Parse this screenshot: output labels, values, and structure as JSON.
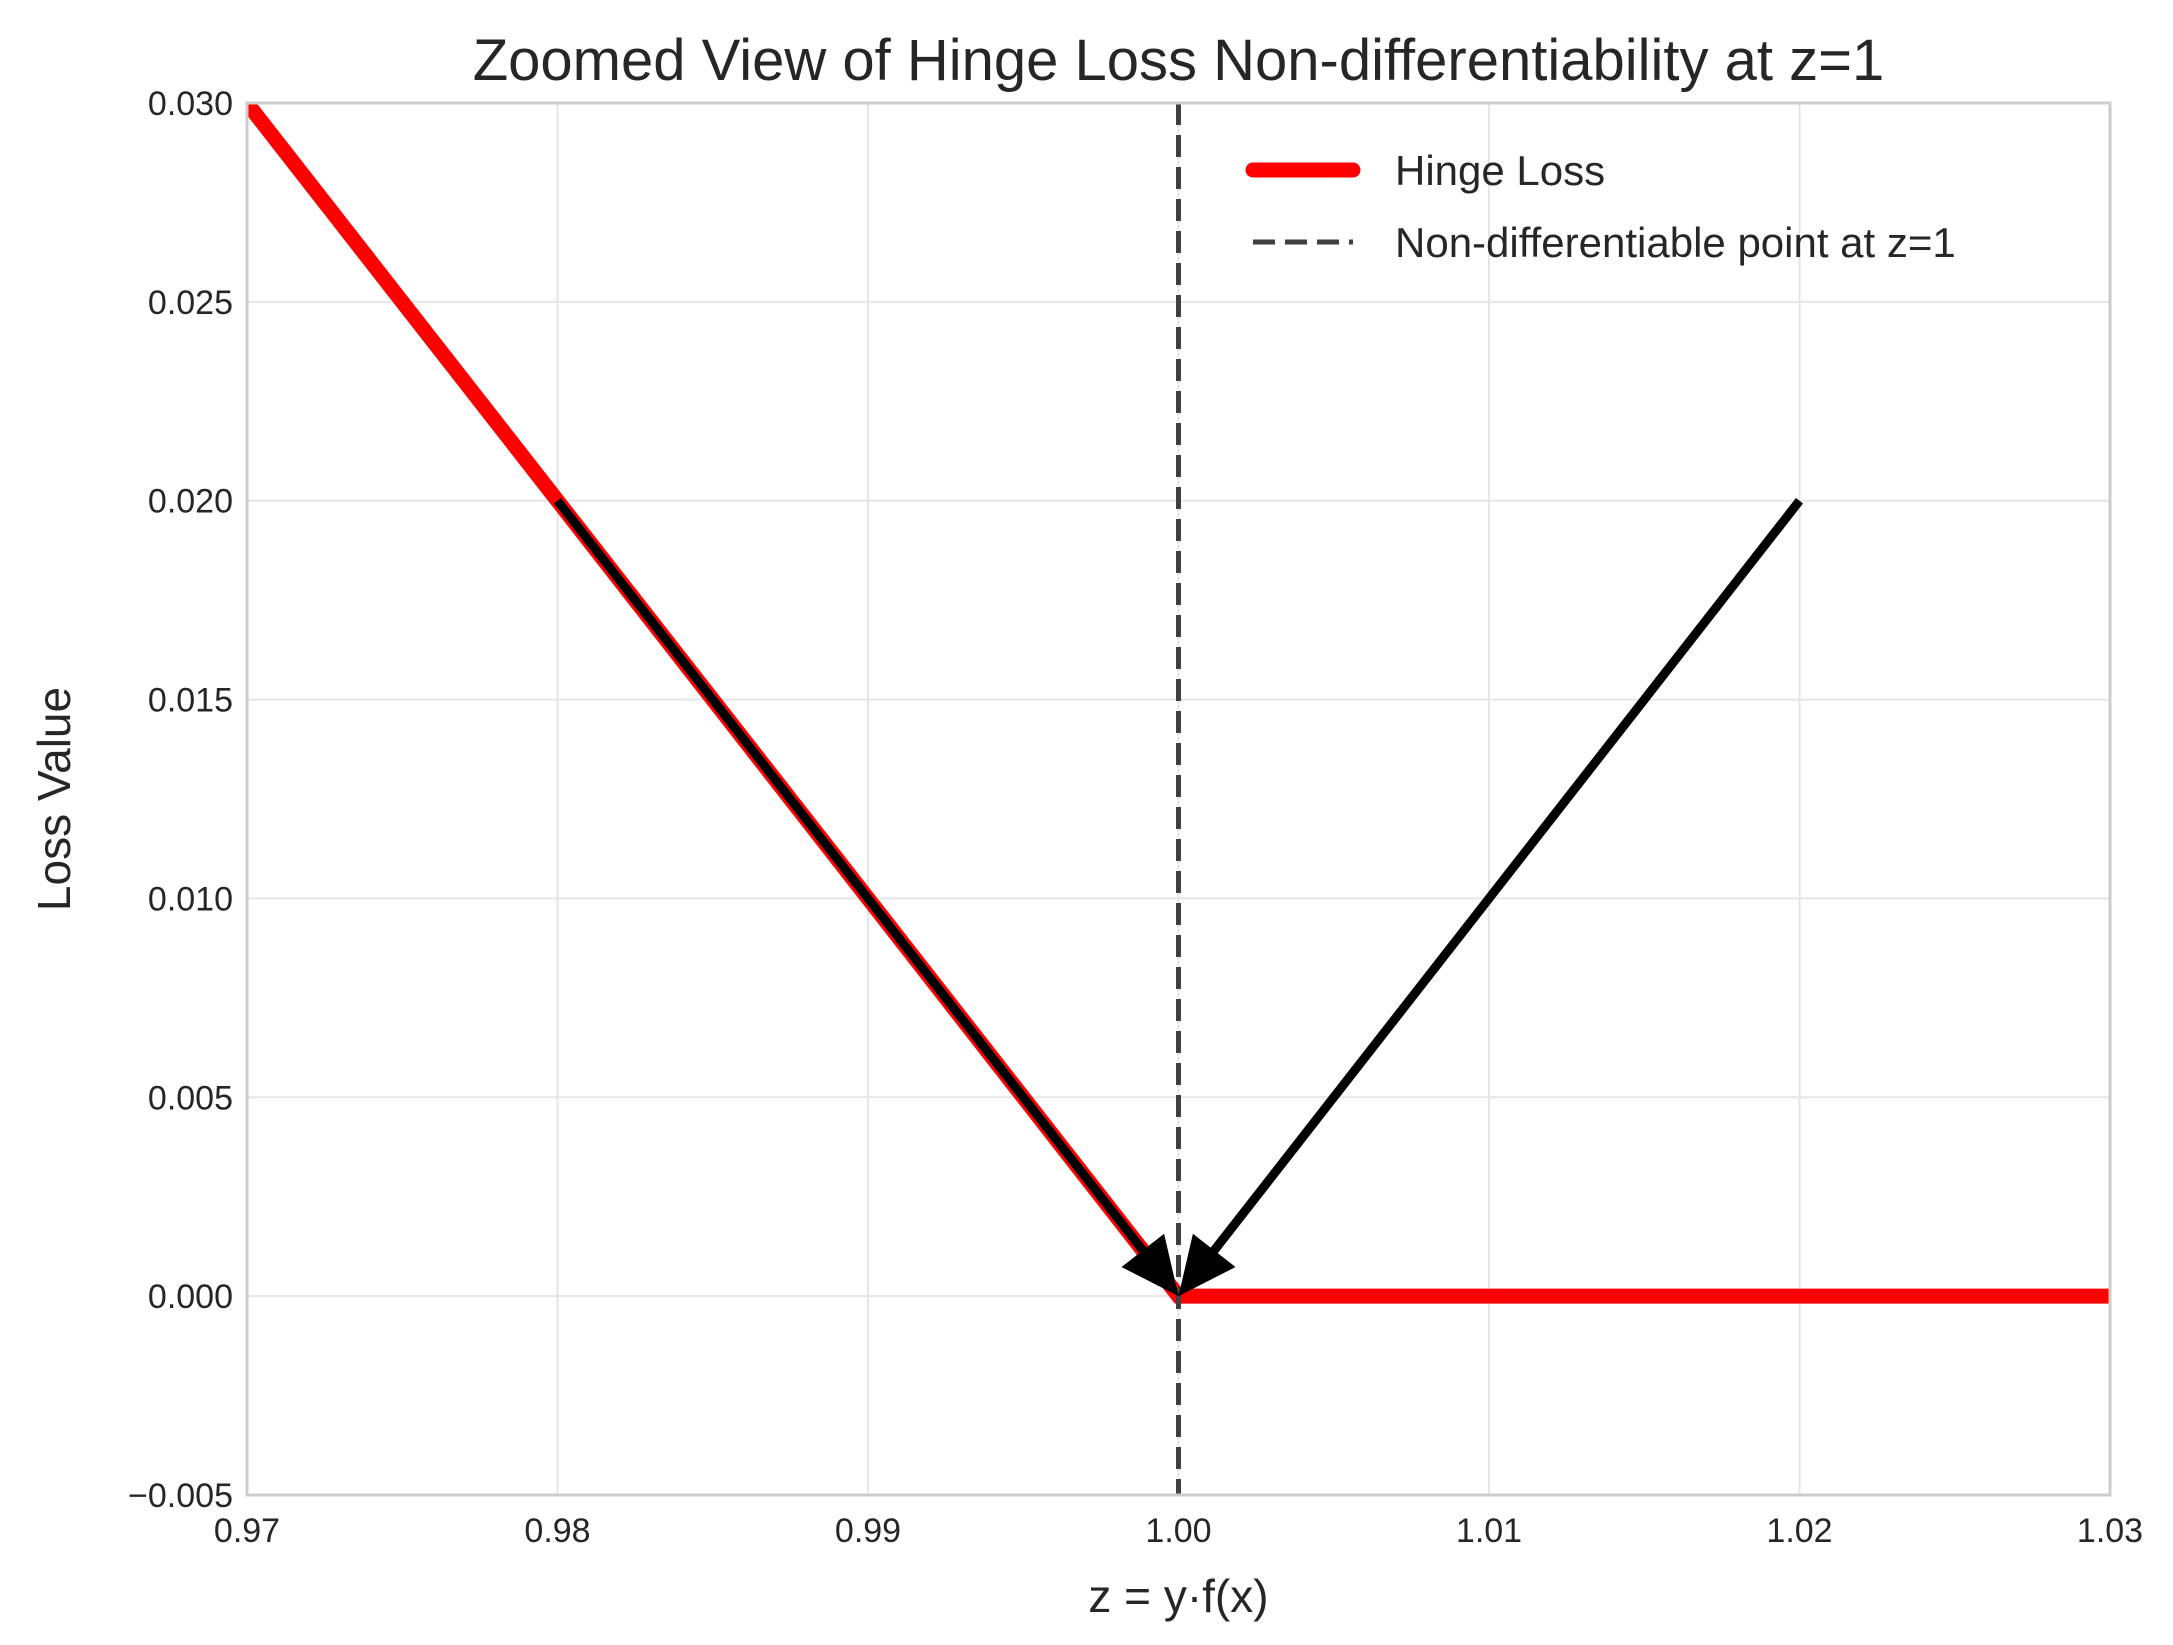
{
  "chart_data": {
    "type": "line",
    "title": "Zoomed View of Hinge Loss Non-differentiability at z=1",
    "xlabel": "z = y·f(x)",
    "ylabel": "Loss Value",
    "xlim": [
      0.97,
      1.03
    ],
    "ylim": [
      -0.005,
      0.03
    ],
    "x_ticks": [
      0.97,
      0.98,
      0.99,
      1.0,
      1.01,
      1.02,
      1.03
    ],
    "x_tick_labels": [
      "0.97",
      "0.98",
      "0.99",
      "1.00",
      "1.01",
      "1.02",
      "1.03"
    ],
    "y_ticks": [
      -0.005,
      0.0,
      0.005,
      0.01,
      0.015,
      0.02,
      0.025,
      0.03
    ],
    "y_tick_labels": [
      "−0.005",
      "0.000",
      "0.005",
      "0.010",
      "0.015",
      "0.020",
      "0.025",
      "0.030"
    ],
    "grid": true,
    "legend_position": "top-right",
    "series": [
      {
        "name": "Hinge Loss",
        "color": "#ff0000",
        "style": "solid",
        "x": [
          0.97,
          1.0,
          1.03
        ],
        "y": [
          0.03,
          0.0,
          0.0
        ]
      }
    ],
    "reference_lines": [
      {
        "name": "Non-differentiable point at z=1",
        "orientation": "vertical",
        "x": 1.0,
        "color": "#404040",
        "style": "dashed"
      }
    ],
    "annotations": [
      {
        "type": "arrow",
        "from": [
          0.98,
          0.02
        ],
        "to": [
          1.0,
          0.0
        ],
        "color": "#000000"
      },
      {
        "type": "arrow",
        "from": [
          1.02,
          0.02
        ],
        "to": [
          1.0,
          0.0
        ],
        "color": "#000000"
      }
    ]
  },
  "colors": {
    "grid": "#e6e6e6",
    "axes_edge": "#cccccc",
    "text": "#262626"
  }
}
